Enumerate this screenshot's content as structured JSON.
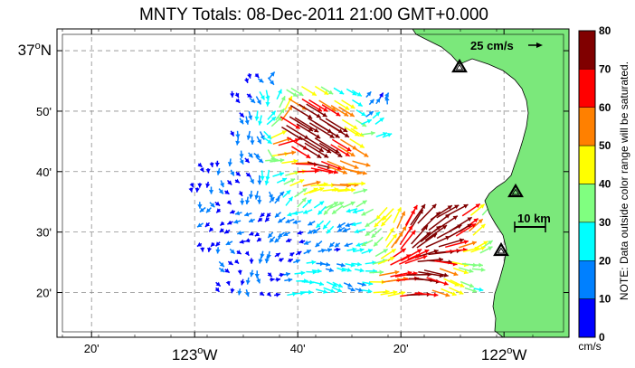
{
  "title": "MNTY Totals: 08-Dec-2011 21:00 GMT+0.000",
  "map": {
    "lat_labels": [
      {
        "lat": 37.0,
        "text": "37",
        "suffix": "N",
        "major": true
      },
      {
        "lat": 36.8333,
        "text": "50'",
        "major": false
      },
      {
        "lat": 36.6667,
        "text": "40'",
        "major": false
      },
      {
        "lat": 36.5,
        "text": "30'",
        "major": false
      },
      {
        "lat": 36.3333,
        "text": "20'",
        "major": false
      }
    ],
    "lon_labels": [
      {
        "lon": -123.3333,
        "text": "20'",
        "major": false
      },
      {
        "lon": -123.0,
        "text": "123",
        "suffix": "W",
        "major": true
      },
      {
        "lon": -122.6667,
        "text": "40'",
        "major": false
      },
      {
        "lon": -122.3333,
        "text": "20'",
        "major": false
      },
      {
        "lon": -122.0,
        "text": "122",
        "suffix": "W",
        "major": true
      }
    ],
    "lon_range": [
      -123.445,
      -121.79
    ],
    "lat_range": [
      36.21,
      37.06
    ],
    "land_color": "#7be87b",
    "scale_arrow_label": "25 cm/s",
    "distance_scale_label": "10 km",
    "stations": [
      "triangle-station-north",
      "triangle-station-point",
      "triangle-station-south"
    ]
  },
  "colorbar": {
    "ticks": [
      "80",
      "70",
      "60",
      "50",
      "40",
      "30",
      "20",
      "10",
      "0"
    ],
    "unit": "cm/s",
    "note": "NOTE: Data outside color range will be saturated.",
    "colors": [
      "#800000",
      "#ff0000",
      "#ff8000",
      "#ffff00",
      "#80ff80",
      "#00ffff",
      "#0080ff",
      "#0000ff"
    ]
  }
}
